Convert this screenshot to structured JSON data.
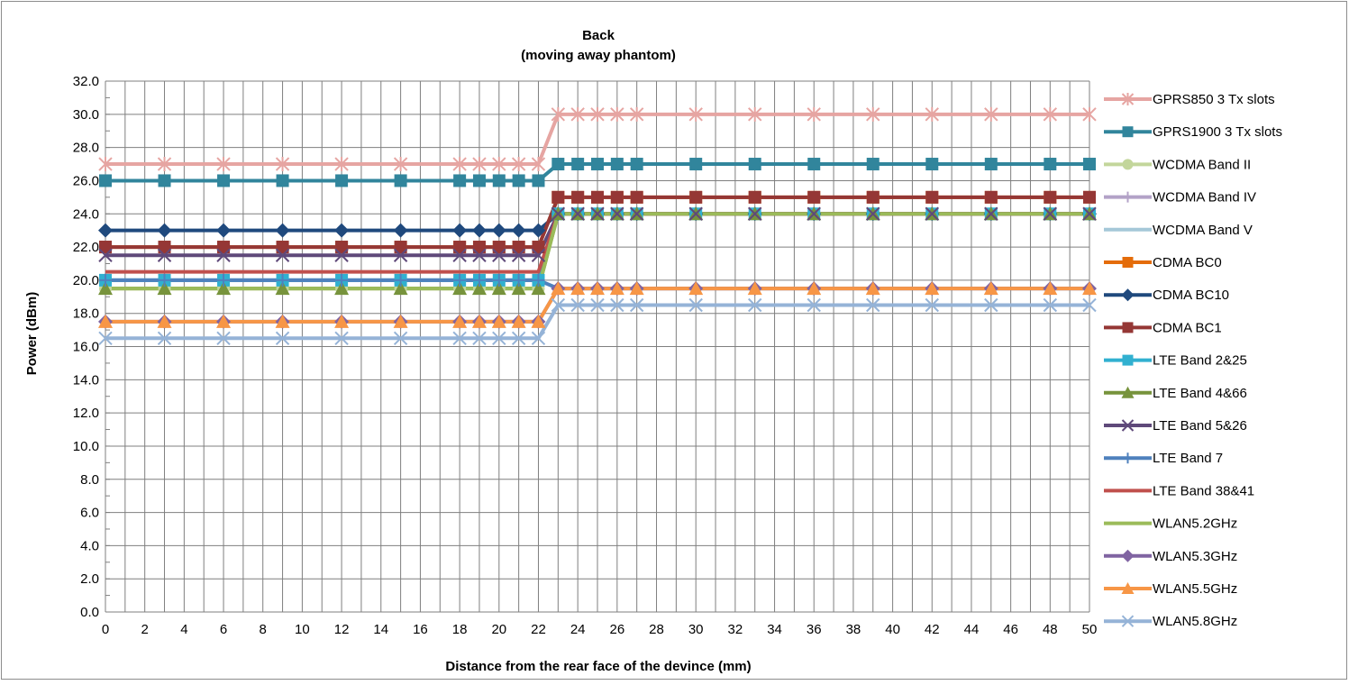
{
  "chart_data": {
    "type": "line",
    "title": "Back",
    "subtitle": "(moving away phantom)",
    "xlabel": "Distance from the rear face of the devince (mm)",
    "ylabel": "Power (dBm)",
    "xlim": [
      0,
      50
    ],
    "ylim": [
      0,
      32
    ],
    "x_ticks": [
      0,
      2,
      4,
      6,
      8,
      10,
      12,
      14,
      16,
      18,
      20,
      22,
      24,
      26,
      28,
      30,
      32,
      34,
      36,
      38,
      40,
      42,
      44,
      46,
      48,
      50
    ],
    "y_ticks": [
      "0.0",
      "2.0",
      "4.0",
      "6.0",
      "8.0",
      "10.0",
      "12.0",
      "14.0",
      "16.0",
      "18.0",
      "20.0",
      "22.0",
      "24.0",
      "26.0",
      "28.0",
      "30.0",
      "32.0"
    ],
    "grid": true,
    "legend_position": "right",
    "x": [
      0,
      3,
      6,
      9,
      12,
      15,
      18,
      19,
      20,
      21,
      22,
      23,
      24,
      25,
      26,
      27,
      30,
      33,
      36,
      39,
      42,
      45,
      48,
      50
    ],
    "series": [
      {
        "name": "GPRS850 3 Tx slots",
        "color": "#e6a5a2",
        "marker": "star",
        "values": [
          27,
          27,
          27,
          27,
          27,
          27,
          27,
          27,
          27,
          27,
          27,
          30,
          30,
          30,
          30,
          30,
          30,
          30,
          30,
          30,
          30,
          30,
          30,
          30
        ]
      },
      {
        "name": "GPRS1900 3 Tx slots",
        "color": "#31859c",
        "marker": "square",
        "values": [
          26,
          26,
          26,
          26,
          26,
          26,
          26,
          26,
          26,
          26,
          26,
          27,
          27,
          27,
          27,
          27,
          27,
          27,
          27,
          27,
          27,
          27,
          27,
          27
        ]
      },
      {
        "name": "WCDMA Band II",
        "color": "#c3d69b",
        "marker": "circle",
        "values": [
          19.5,
          19.5,
          19.5,
          19.5,
          19.5,
          19.5,
          19.5,
          19.5,
          19.5,
          19.5,
          19.5,
          24,
          24,
          24,
          24,
          24,
          24,
          24,
          24,
          24,
          24,
          24,
          24,
          24
        ]
      },
      {
        "name": "WCDMA Band IV",
        "color": "#b3a2c7",
        "marker": "plus",
        "values": [
          20,
          20,
          20,
          20,
          20,
          20,
          20,
          20,
          20,
          20,
          20,
          24,
          24,
          24,
          24,
          24,
          24,
          24,
          24,
          24,
          24,
          24,
          24,
          24
        ]
      },
      {
        "name": "WCDMA Band V",
        "color": "#a5c8d8",
        "marker": "none",
        "values": [
          20,
          20,
          20,
          20,
          20,
          20,
          20,
          20,
          20,
          20,
          20,
          24,
          24,
          24,
          24,
          24,
          24,
          24,
          24,
          24,
          24,
          24,
          24,
          24
        ]
      },
      {
        "name": "CDMA BC0",
        "color": "#e46c0a",
        "marker": "square",
        "values": [
          22,
          22,
          22,
          22,
          22,
          22,
          22,
          22,
          22,
          22,
          22,
          25,
          25,
          25,
          25,
          25,
          25,
          25,
          25,
          25,
          25,
          25,
          25,
          25
        ]
      },
      {
        "name": "CDMA BC10",
        "color": "#1f497d",
        "marker": "diamond",
        "values": [
          23,
          23,
          23,
          23,
          23,
          23,
          23,
          23,
          23,
          23,
          23,
          24,
          24,
          24,
          24,
          24,
          24,
          24,
          24,
          24,
          24,
          24,
          24,
          24
        ]
      },
      {
        "name": "CDMA BC1",
        "color": "#953735",
        "marker": "square",
        "values": [
          22,
          22,
          22,
          22,
          22,
          22,
          22,
          22,
          22,
          22,
          22,
          25,
          25,
          25,
          25,
          25,
          25,
          25,
          25,
          25,
          25,
          25,
          25,
          25
        ]
      },
      {
        "name": "LTE Band 2&25",
        "color": "#31b0d0",
        "marker": "square",
        "values": [
          20,
          20,
          20,
          20,
          20,
          20,
          20,
          20,
          20,
          20,
          20,
          24,
          24,
          24,
          24,
          24,
          24,
          24,
          24,
          24,
          24,
          24,
          24,
          24
        ]
      },
      {
        "name": "LTE Band 4&66",
        "color": "#77933c",
        "marker": "triangle",
        "values": [
          19.5,
          19.5,
          19.5,
          19.5,
          19.5,
          19.5,
          19.5,
          19.5,
          19.5,
          19.5,
          19.5,
          24,
          24,
          24,
          24,
          24,
          24,
          24,
          24,
          24,
          24,
          24,
          24,
          24
        ]
      },
      {
        "name": "LTE Band 5&26",
        "color": "#5f497a",
        "marker": "x",
        "values": [
          21.5,
          21.5,
          21.5,
          21.5,
          21.5,
          21.5,
          21.5,
          21.5,
          21.5,
          21.5,
          21.5,
          24,
          24,
          24,
          24,
          24,
          24,
          24,
          24,
          24,
          24,
          24,
          24,
          24
        ]
      },
      {
        "name": "LTE Band 7",
        "color": "#4f81bd",
        "marker": "plus",
        "values": [
          20,
          20,
          20,
          20,
          20,
          20,
          20,
          20,
          20,
          20,
          20,
          19.5,
          19.5,
          19.5,
          19.5,
          19.5,
          19.5,
          19.5,
          19.5,
          19.5,
          19.5,
          19.5,
          19.5,
          19.5
        ]
      },
      {
        "name": "LTE Band 38&41",
        "color": "#c0504d",
        "marker": "none",
        "values": [
          20.5,
          20.5,
          20.5,
          20.5,
          20.5,
          20.5,
          20.5,
          20.5,
          20.5,
          20.5,
          20.5,
          24,
          24,
          24,
          24,
          24,
          24,
          24,
          24,
          24,
          24,
          24,
          24,
          24
        ]
      },
      {
        "name": "WLAN5.2GHz",
        "color": "#9bbb59",
        "marker": "none",
        "values": [
          19.5,
          19.5,
          19.5,
          19.5,
          19.5,
          19.5,
          19.5,
          19.5,
          19.5,
          19.5,
          19.5,
          24,
          24,
          24,
          24,
          24,
          24,
          24,
          24,
          24,
          24,
          24,
          24,
          24
        ]
      },
      {
        "name": "WLAN5.3GHz",
        "color": "#8064a2",
        "marker": "diamond",
        "values": [
          17.5,
          17.5,
          17.5,
          17.5,
          17.5,
          17.5,
          17.5,
          17.5,
          17.5,
          17.5,
          17.5,
          19.5,
          19.5,
          19.5,
          19.5,
          19.5,
          19.5,
          19.5,
          19.5,
          19.5,
          19.5,
          19.5,
          19.5,
          19.5
        ]
      },
      {
        "name": "WLAN5.5GHz",
        "color": "#f79646",
        "marker": "triangle",
        "values": [
          17.5,
          17.5,
          17.5,
          17.5,
          17.5,
          17.5,
          17.5,
          17.5,
          17.5,
          17.5,
          17.5,
          19.5,
          19.5,
          19.5,
          19.5,
          19.5,
          19.5,
          19.5,
          19.5,
          19.5,
          19.5,
          19.5,
          19.5,
          19.5
        ]
      },
      {
        "name": "WLAN5.8GHz",
        "color": "#95b3d7",
        "marker": "x",
        "values": [
          16.5,
          16.5,
          16.5,
          16.5,
          16.5,
          16.5,
          16.5,
          16.5,
          16.5,
          16.5,
          16.5,
          18.5,
          18.5,
          18.5,
          18.5,
          18.5,
          18.5,
          18.5,
          18.5,
          18.5,
          18.5,
          18.5,
          18.5,
          18.5
        ]
      }
    ]
  }
}
